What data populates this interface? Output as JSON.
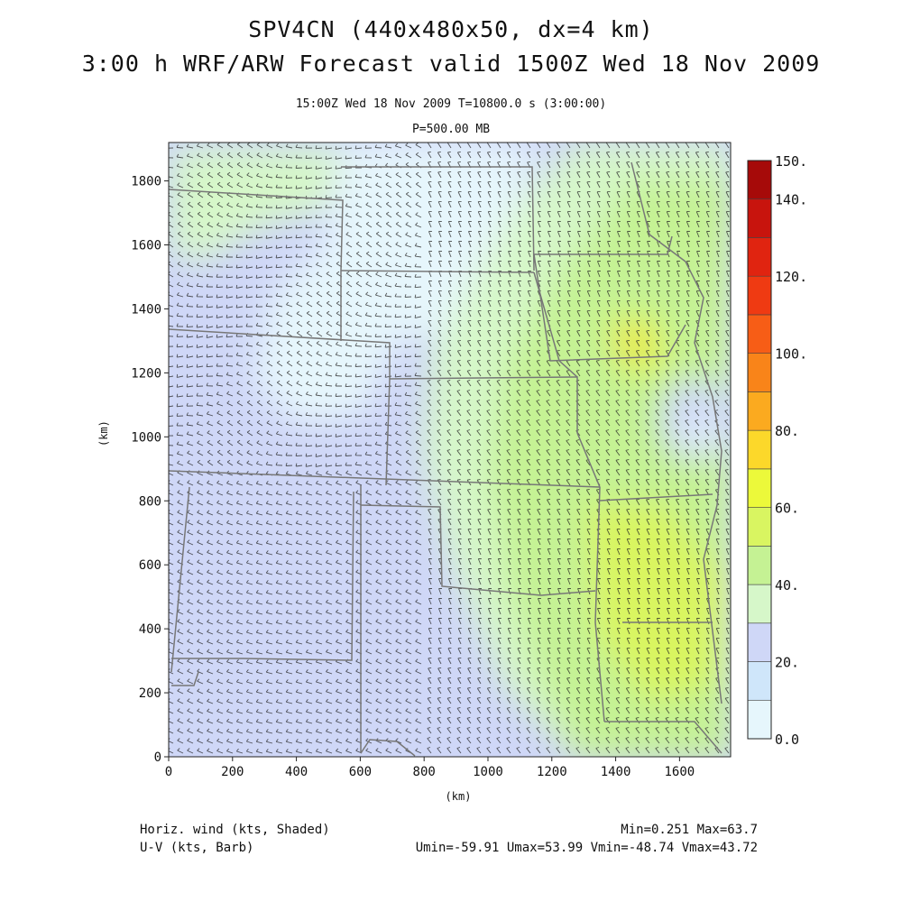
{
  "header": {
    "title_line1": "SPV4CN (440x480x50, dx=4 km)",
    "title_line2": "3:00 h WRF/ARW Forecast valid 1500Z Wed 18 Nov 2009",
    "time_info": "15:00Z Wed 18 Nov 2009     T=10800.0 s (3:00:00)",
    "level_info": "P=500.00 MB"
  },
  "chart_data": {
    "type": "heatmap",
    "title": "SPV4CN (440x480x50, dx=4 km)",
    "xlabel": "(km)",
    "ylabel": "(km)",
    "xlim": [
      0,
      1760
    ],
    "ylim": [
      0,
      1920
    ],
    "x_ticks": [
      0,
      200,
      400,
      600,
      800,
      1000,
      1200,
      1400,
      1600
    ],
    "y_ticks": [
      0,
      200,
      400,
      600,
      800,
      1000,
      1200,
      1400,
      1600,
      1800
    ],
    "colorbar": {
      "labels": [
        "0.0",
        "20.",
        "40.",
        "60.",
        "80.",
        "100.",
        "120.",
        "140.",
        "150."
      ],
      "levels": [
        0,
        10,
        20,
        30,
        40,
        50,
        60,
        70,
        80,
        90,
        100,
        110,
        120,
        130,
        140,
        150
      ],
      "colors": [
        "#e6f6fc",
        "#cfe6fa",
        "#cfd7f7",
        "#d6f7c9",
        "#c5f294",
        "#d9f561",
        "#ecf93a",
        "#fcd82a",
        "#fbaa1f",
        "#f98419",
        "#f75d16",
        "#ef3a12",
        "#e02410",
        "#c8140d",
        "#a60a09"
      ]
    },
    "wind_regions": [
      {
        "region": "northwest",
        "approx_speed_kts": 20
      },
      {
        "region": "west and southwest",
        "approx_speed_kts": 20
      },
      {
        "region": "central north",
        "approx_speed_kts": 10
      },
      {
        "region": "east belt",
        "approx_speed_kts": 40
      },
      {
        "region": "southeast",
        "approx_speed_kts": 50
      },
      {
        "region": "east local maximum",
        "approx_speed_kts": 63.7
      },
      {
        "region": "east low center",
        "approx_speed_kts": 5
      }
    ],
    "grid": false
  },
  "footer": {
    "field1": "Horiz. wind (kts, Shaded)",
    "field2": "U-V (kts, Barb)",
    "minmax": "Min=0.251 Max=63.7",
    "uvrange": "Umin=-59.91 Umax=53.99 Vmin=-48.74 Vmax=43.72"
  }
}
